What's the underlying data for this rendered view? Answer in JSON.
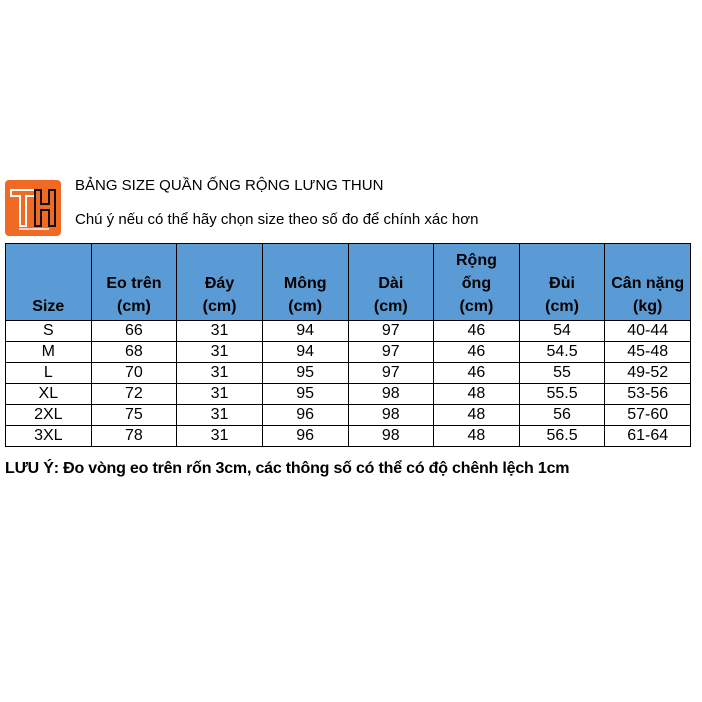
{
  "logo": {
    "text": "TH",
    "color": "#f06a24"
  },
  "title": "BẢNG SIZE QUẦN ỐNG RỘNG LƯNG THUN",
  "subtitle": "Chú ý nếu có thể hãy chọn size theo số đo để chính xác hơn",
  "table": {
    "header_color": "#5b9bd5",
    "headers": [
      [
        "Size"
      ],
      [
        "Eo trên",
        "(cm)"
      ],
      [
        "Đáy",
        "(cm)"
      ],
      [
        "Mông",
        "(cm)"
      ],
      [
        "Dài",
        "(cm)"
      ],
      [
        "Rộng",
        "ống",
        "(cm)"
      ],
      [
        "Đùi",
        "(cm)"
      ],
      [
        "Cân nặng",
        "(kg)"
      ]
    ],
    "rows": [
      [
        "S",
        "66",
        "31",
        "94",
        "97",
        "46",
        "54",
        "40-44"
      ],
      [
        "M",
        "68",
        "31",
        "94",
        "97",
        "46",
        "54.5",
        "45-48"
      ],
      [
        "L",
        "70",
        "31",
        "95",
        "97",
        "46",
        "55",
        "49-52"
      ],
      [
        "XL",
        "72",
        "31",
        "95",
        "98",
        "48",
        "55.5",
        "53-56"
      ],
      [
        "2XL",
        "75",
        "31",
        "96",
        "98",
        "48",
        "56",
        "57-60"
      ],
      [
        "3XL",
        "78",
        "31",
        "96",
        "98",
        "48",
        "56.5",
        "61-64"
      ]
    ]
  },
  "note": "LƯU Ý: Đo vòng eo trên rốn 3cm, các thông số có thể có độ chênh lệch 1cm"
}
